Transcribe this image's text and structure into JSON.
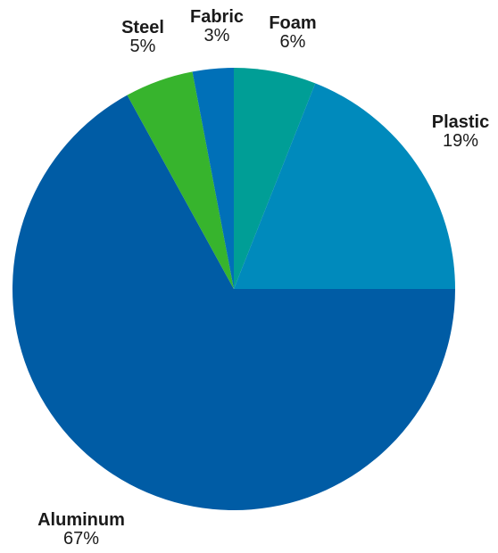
{
  "chart_data": {
    "type": "pie",
    "title": "",
    "slices": [
      {
        "label": "Foam",
        "value": 6,
        "value_label": "6%",
        "color": "#009e96"
      },
      {
        "label": "Plastic",
        "value": 19,
        "value_label": "19%",
        "color": "#008abc"
      },
      {
        "label": "Aluminum",
        "value": 67,
        "value_label": "67%",
        "color": "#005ca5"
      },
      {
        "label": "Steel",
        "value": 5,
        "value_label": "5%",
        "color": "#37b42d"
      },
      {
        "label": "Fabric",
        "value": 3,
        "value_label": "3%",
        "color": "#0070b8"
      }
    ],
    "start_angle_deg": 0,
    "direction": "clockwise",
    "legend": "none",
    "labels": "outside"
  }
}
